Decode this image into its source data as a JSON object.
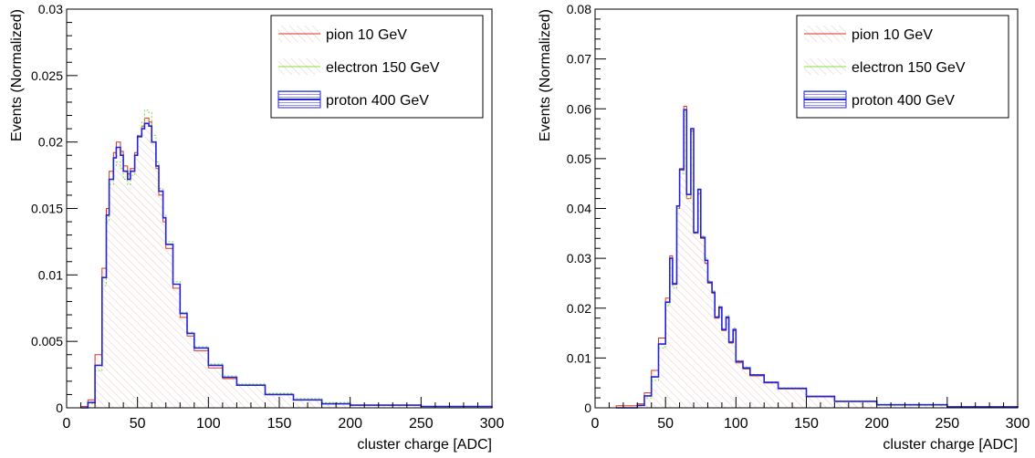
{
  "chart_data": [
    {
      "type": "line",
      "step": true,
      "xlabel": "cluster charge [ADC]",
      "ylabel": "Events (Normalized)",
      "xlim": [
        0,
        300
      ],
      "ylim": [
        0,
        0.03
      ],
      "xticks": [
        0,
        50,
        100,
        150,
        200,
        250,
        300
      ],
      "xtick_labels": [
        "0",
        "50",
        "100",
        "150",
        "200",
        "250",
        "300"
      ],
      "yticks": [
        0,
        0.005,
        0.01,
        0.015,
        0.02,
        0.025,
        0.03
      ],
      "ytick_labels": [
        "0",
        "0.005",
        "0.01",
        "0.015",
        "0.02",
        "0.025",
        "0.03"
      ],
      "legend_position": "top-right",
      "x": [
        10,
        15,
        20,
        25,
        28,
        30,
        33,
        35,
        38,
        40,
        43,
        45,
        48,
        50,
        53,
        55,
        58,
        60,
        63,
        65,
        68,
        70,
        75,
        80,
        85,
        90,
        100,
        110,
        120,
        140,
        160,
        180,
        200,
        250,
        300
      ],
      "series": [
        {
          "name": "pion 10 GeV",
          "color": "#e03020",
          "values": [
            0.0001,
            0.0006,
            0.004,
            0.0105,
            0.015,
            0.0178,
            0.0192,
            0.02,
            0.0193,
            0.0182,
            0.0176,
            0.018,
            0.0192,
            0.0205,
            0.0212,
            0.0218,
            0.0215,
            0.02,
            0.018,
            0.016,
            0.014,
            0.012,
            0.009,
            0.0068,
            0.0054,
            0.0043,
            0.003,
            0.0022,
            0.0017,
            0.001,
            0.0006,
            0.0003,
            0.0002,
            0.0001,
            0.0
          ]
        },
        {
          "name": "electron 150 GeV",
          "color": "#7ee040",
          "values": [
            0.0,
            0.0003,
            0.0028,
            0.0092,
            0.014,
            0.0168,
            0.0182,
            0.0185,
            0.018,
            0.0172,
            0.0168,
            0.0175,
            0.019,
            0.0205,
            0.0215,
            0.0224,
            0.0222,
            0.0205,
            0.0185,
            0.0165,
            0.0145,
            0.0125,
            0.0095,
            0.0072,
            0.0057,
            0.0046,
            0.0033,
            0.0024,
            0.0018,
            0.0011,
            0.0007,
            0.0004,
            0.0002,
            0.0001,
            0.0
          ]
        },
        {
          "name": "proton 400 GeV",
          "color": "#2222dd",
          "values": [
            0.0,
            0.0004,
            0.0032,
            0.0098,
            0.0145,
            0.0172,
            0.0188,
            0.0196,
            0.019,
            0.0178,
            0.0172,
            0.0178,
            0.019,
            0.0204,
            0.021,
            0.0214,
            0.0212,
            0.02,
            0.0182,
            0.0163,
            0.0143,
            0.0123,
            0.0093,
            0.0071,
            0.0056,
            0.0045,
            0.0032,
            0.0023,
            0.0017,
            0.001,
            0.0006,
            0.0003,
            0.0002,
            0.0001,
            0.0
          ]
        }
      ]
    },
    {
      "type": "line",
      "step": true,
      "xlabel": "cluster charge [ADC]",
      "ylabel": "Events (Normalized)",
      "xlim": [
        0,
        300
      ],
      "ylim": [
        0,
        0.08
      ],
      "xticks": [
        0,
        50,
        100,
        150,
        200,
        250,
        300
      ],
      "xtick_labels": [
        "0",
        "50",
        "100",
        "150",
        "200",
        "250",
        "300"
      ],
      "yticks": [
        0,
        0.01,
        0.02,
        0.03,
        0.04,
        0.05,
        0.06,
        0.07,
        0.08
      ],
      "ytick_labels": [
        "0",
        "0.01",
        "0.02",
        "0.03",
        "0.04",
        "0.05",
        "0.06",
        "0.07",
        "0.08"
      ],
      "legend_position": "top-right",
      "x": [
        15,
        30,
        35,
        40,
        45,
        50,
        53,
        55,
        58,
        60,
        63,
        65,
        68,
        70,
        73,
        75,
        78,
        80,
        83,
        85,
        88,
        90,
        93,
        95,
        98,
        100,
        105,
        110,
        120,
        130,
        150,
        170,
        200,
        250,
        300
      ],
      "series": [
        {
          "name": "pion 10 GeV",
          "color": "#e03020",
          "values": [
            0.0004,
            0.0008,
            0.003,
            0.0075,
            0.014,
            0.022,
            0.0305,
            0.025,
            0.04,
            0.048,
            0.0605,
            0.042,
            0.0555,
            0.035,
            0.043,
            0.034,
            0.029,
            0.025,
            0.023,
            0.018,
            0.02,
            0.0155,
            0.018,
            0.013,
            0.0155,
            0.009,
            0.0078,
            0.0064,
            0.005,
            0.0038,
            0.0022,
            0.0013,
            0.0006,
            0.0002,
            0.0
          ]
        },
        {
          "name": "electron 150 GeV",
          "color": "#7ee040",
          "values": [
            0.0,
            0.0004,
            0.002,
            0.0055,
            0.012,
            0.0205,
            0.029,
            0.024,
            0.04,
            0.047,
            0.0585,
            0.042,
            0.055,
            0.035,
            0.044,
            0.0345,
            0.03,
            0.0255,
            0.0235,
            0.0185,
            0.0205,
            0.016,
            0.0185,
            0.0135,
            0.016,
            0.0095,
            0.0082,
            0.0067,
            0.0052,
            0.004,
            0.0023,
            0.0014,
            0.0007,
            0.0002,
            0.0
          ]
        },
        {
          "name": "proton 400 GeV",
          "color": "#2222dd",
          "values": [
            0.0,
            0.0005,
            0.0024,
            0.0062,
            0.0128,
            0.0212,
            0.03,
            0.0248,
            0.0405,
            0.0478,
            0.0598,
            0.0428,
            0.056,
            0.0352,
            0.0438,
            0.0342,
            0.0296,
            0.0252,
            0.0232,
            0.0182,
            0.0202,
            0.0157,
            0.0182,
            0.0132,
            0.0157,
            0.0093,
            0.008,
            0.0066,
            0.0051,
            0.0039,
            0.0023,
            0.0013,
            0.0006,
            0.0002,
            0.0
          ]
        }
      ]
    }
  ]
}
